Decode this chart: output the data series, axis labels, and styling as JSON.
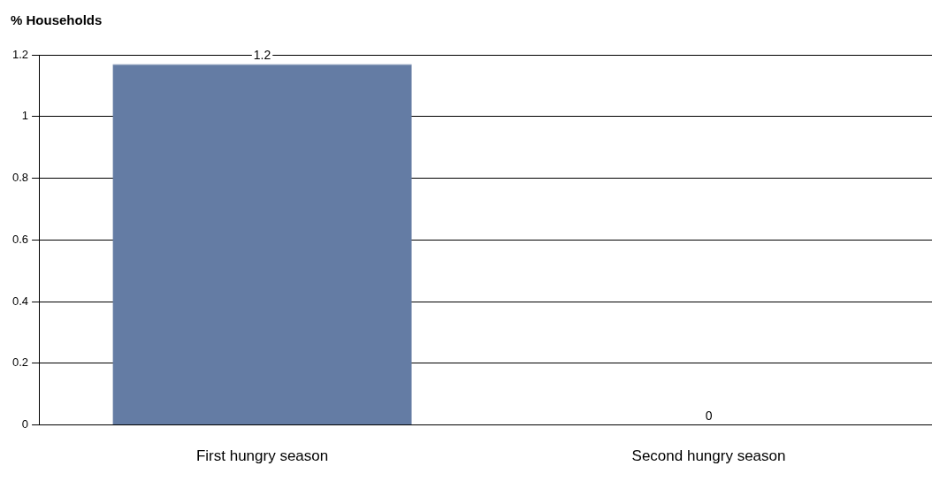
{
  "chart_data": {
    "type": "bar",
    "ylabel": "% Households",
    "categories": [
      "First hungry season",
      "Second hungry season"
    ],
    "values": [
      1.17,
      0
    ],
    "colors": [
      "#647ca4",
      "#c0504d"
    ],
    "value_labels": [
      "1.2",
      "0"
    ],
    "ylim": [
      0,
      1.2
    ],
    "yticks": [
      0,
      0.2,
      0.4,
      0.6,
      0.8,
      1,
      1.2
    ],
    "grid": "y"
  }
}
